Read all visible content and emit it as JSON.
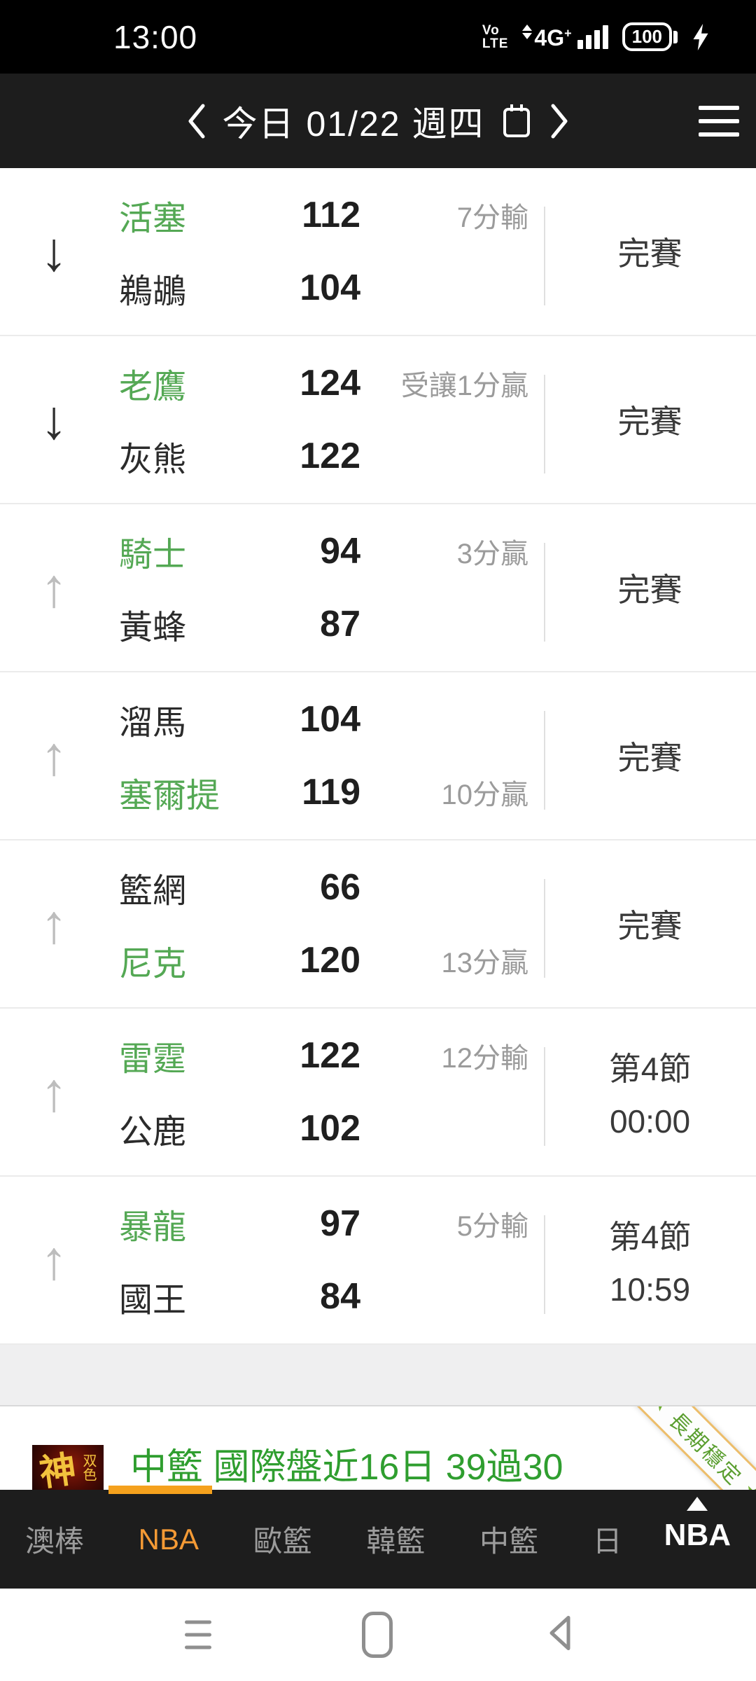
{
  "status_bar": {
    "time": "13:00",
    "volte_top": "Vo",
    "volte_bottom": "LTE",
    "network": "4G",
    "network_plus": "+",
    "battery": "100"
  },
  "header": {
    "title": "今日 01/22 週四"
  },
  "games": [
    {
      "trend": "down",
      "away": {
        "name": "活塞",
        "score": "112",
        "green": true
      },
      "home": {
        "name": "鵜鶘",
        "score": "104",
        "green": false
      },
      "handicap": {
        "text": "7分輸",
        "line": "top"
      },
      "status_lines": [
        "完賽"
      ]
    },
    {
      "trend": "down",
      "away": {
        "name": "老鷹",
        "score": "124",
        "green": true
      },
      "home": {
        "name": "灰熊",
        "score": "122",
        "green": false
      },
      "handicap": {
        "text": "受讓1分贏",
        "line": "top"
      },
      "status_lines": [
        "完賽"
      ]
    },
    {
      "trend": "up",
      "away": {
        "name": "騎士",
        "score": "94",
        "green": true
      },
      "home": {
        "name": "黃蜂",
        "score": "87",
        "green": false
      },
      "handicap": {
        "text": "3分贏",
        "line": "top"
      },
      "status_lines": [
        "完賽"
      ]
    },
    {
      "trend": "up",
      "away": {
        "name": "溜馬",
        "score": "104",
        "green": false
      },
      "home": {
        "name": "塞爾提",
        "score": "119",
        "green": true
      },
      "handicap": {
        "text": "10分贏",
        "line": "bottom"
      },
      "status_lines": [
        "完賽"
      ]
    },
    {
      "trend": "up",
      "away": {
        "name": "籃網",
        "score": "66",
        "green": false
      },
      "home": {
        "name": "尼克",
        "score": "120",
        "green": true
      },
      "handicap": {
        "text": "13分贏",
        "line": "bottom"
      },
      "status_lines": [
        "完賽"
      ]
    },
    {
      "trend": "up",
      "away": {
        "name": "雷霆",
        "score": "122",
        "green": true
      },
      "home": {
        "name": "公鹿",
        "score": "102",
        "green": false
      },
      "handicap": {
        "text": "12分輸",
        "line": "top"
      },
      "status_lines": [
        "第4節",
        "00:00"
      ]
    },
    {
      "trend": "up",
      "away": {
        "name": "暴龍",
        "score": "97",
        "green": true
      },
      "home": {
        "name": "國王",
        "score": "84",
        "green": false
      },
      "handicap": {
        "text": "5分輸",
        "line": "top"
      },
      "status_lines": [
        "第4節",
        "10:59"
      ]
    }
  ],
  "footer_ad": {
    "logo_main": "神",
    "logo_side": "双色",
    "text": "中籃 國際盤近16日 39過30",
    "ribbon": "長期穩定",
    "star": "★"
  },
  "tab_bar": {
    "tabs": [
      {
        "label": "澳棒",
        "active": false
      },
      {
        "label": "NBA",
        "active": true
      },
      {
        "label": "歐籃",
        "active": false
      },
      {
        "label": "韓籃",
        "active": false
      },
      {
        "label": "中籃",
        "active": false
      },
      {
        "label": "日",
        "active": false
      }
    ],
    "current": {
      "label": "NBA"
    }
  },
  "colors": {
    "team_green": "#54a854",
    "ad_green": "#2f9e2f",
    "tab_orange": "#f49a35",
    "handicap_gray": "#9b9b9b",
    "underline_orange": "#f5a11d"
  }
}
